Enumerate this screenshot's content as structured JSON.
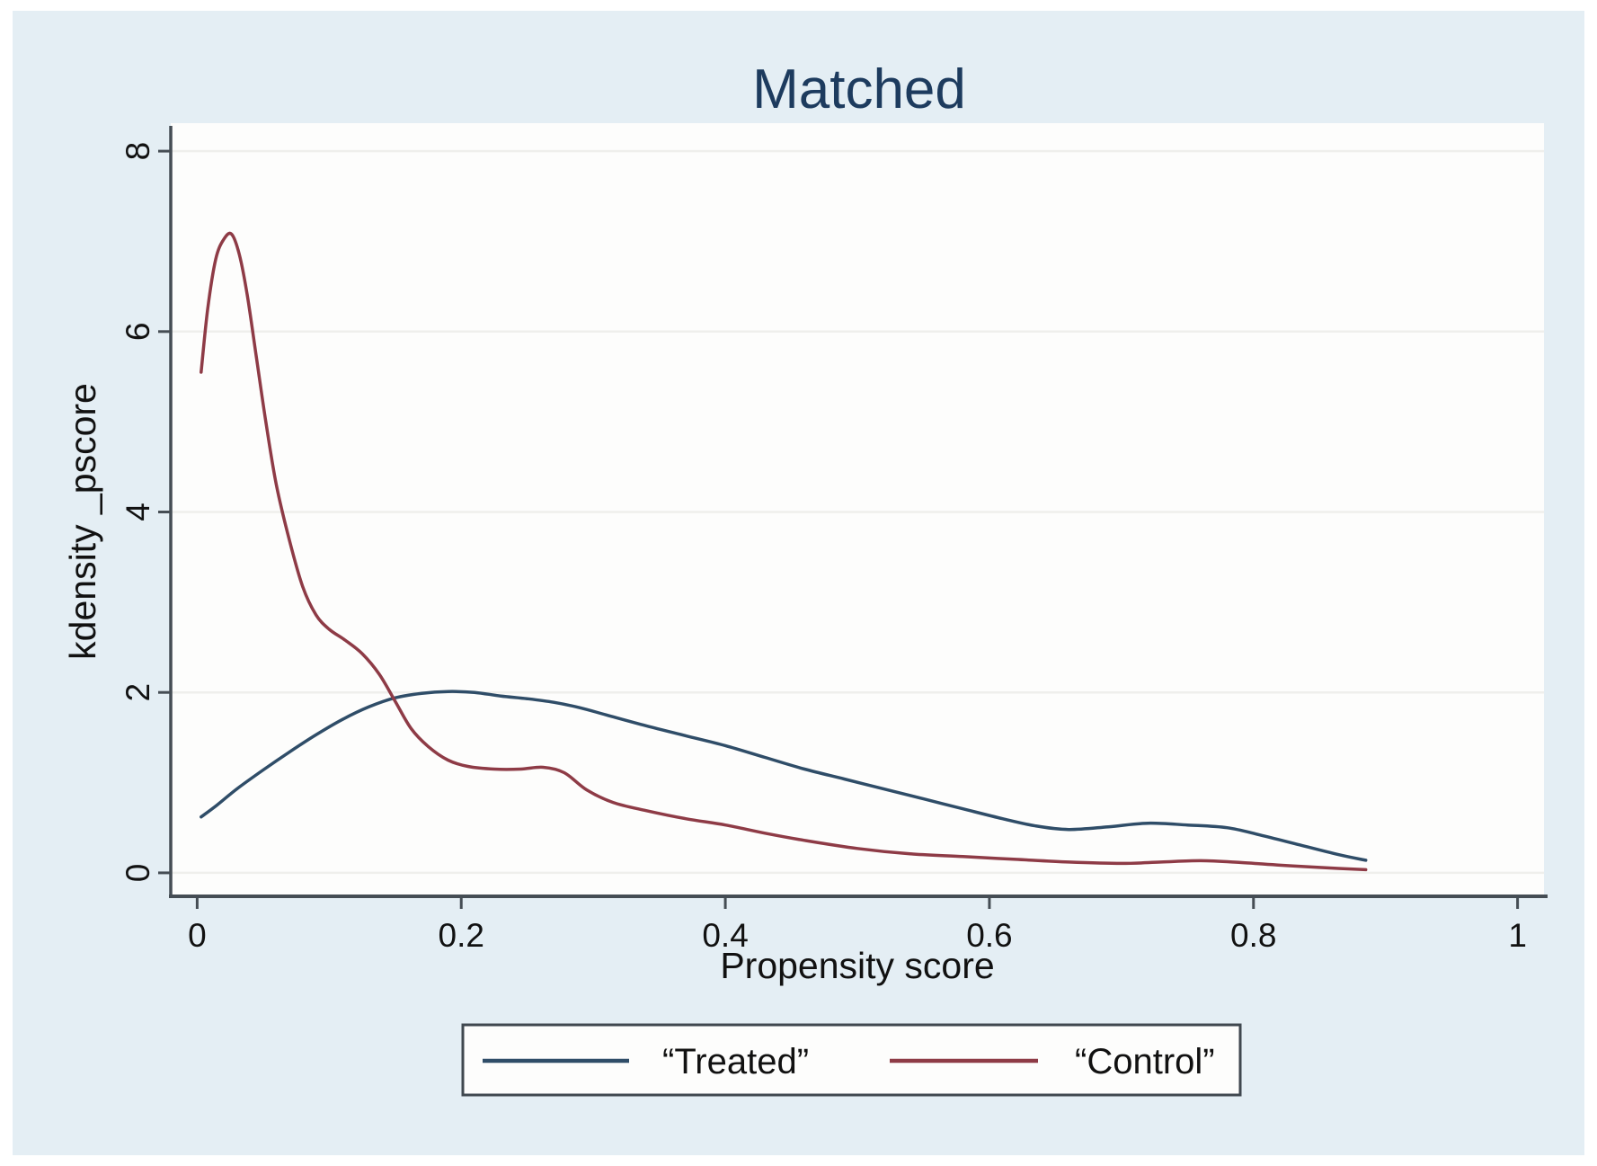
{
  "figure": {
    "page_background": "#ffffff",
    "canvas_background": "#e4eef4",
    "plot_background": "#fdfdfc"
  },
  "chart_data": {
    "type": "line",
    "title": "Matched",
    "xlabel": "Propensity score",
    "ylabel": "kdensity _pscore",
    "xlim": [
      -0.02,
      1.02
    ],
    "ylim": [
      -0.26,
      8.31
    ],
    "grid": "horizontal-only",
    "legend_position": "bottom-center",
    "x_ticks": {
      "values": [
        0,
        0.2,
        0.4,
        0.6,
        0.8,
        1
      ],
      "labels": [
        "0",
        "0.2",
        "0.4",
        "0.6",
        "0.8",
        "1"
      ]
    },
    "y_ticks": {
      "values": [
        0,
        2,
        4,
        6,
        8
      ],
      "labels": [
        "0",
        "2",
        "4",
        "6",
        "8"
      ]
    },
    "style": {
      "title_color": "#1d3b5e",
      "axis_color": "#454d54",
      "grid_color": "#efefec",
      "text_color": "#111111",
      "legend_border_color": "#40484f",
      "legend_background": "#fdfdfc"
    },
    "series": [
      {
        "name": "“Treated”",
        "color": "#2f4d68",
        "points": [
          [
            0.003,
            0.62
          ],
          [
            0.015,
            0.75
          ],
          [
            0.03,
            0.93
          ],
          [
            0.05,
            1.14
          ],
          [
            0.07,
            1.34
          ],
          [
            0.09,
            1.53
          ],
          [
            0.11,
            1.7
          ],
          [
            0.13,
            1.84
          ],
          [
            0.15,
            1.94
          ],
          [
            0.17,
            1.99
          ],
          [
            0.19,
            2.01
          ],
          [
            0.21,
            2.0
          ],
          [
            0.23,
            1.96
          ],
          [
            0.25,
            1.93
          ],
          [
            0.27,
            1.89
          ],
          [
            0.29,
            1.83
          ],
          [
            0.31,
            1.75
          ],
          [
            0.34,
            1.63
          ],
          [
            0.37,
            1.52
          ],
          [
            0.4,
            1.41
          ],
          [
            0.43,
            1.28
          ],
          [
            0.46,
            1.15
          ],
          [
            0.49,
            1.04
          ],
          [
            0.52,
            0.93
          ],
          [
            0.55,
            0.82
          ],
          [
            0.58,
            0.71
          ],
          [
            0.61,
            0.6
          ],
          [
            0.635,
            0.52
          ],
          [
            0.66,
            0.48
          ],
          [
            0.69,
            0.51
          ],
          [
            0.72,
            0.55
          ],
          [
            0.75,
            0.53
          ],
          [
            0.78,
            0.5
          ],
          [
            0.805,
            0.42
          ],
          [
            0.835,
            0.31
          ],
          [
            0.865,
            0.2
          ],
          [
            0.885,
            0.14
          ]
        ]
      },
      {
        "name": "“Control”",
        "color": "#8e3b46",
        "points": [
          [
            0.003,
            5.55
          ],
          [
            0.008,
            6.25
          ],
          [
            0.014,
            6.8
          ],
          [
            0.02,
            7.02
          ],
          [
            0.026,
            7.08
          ],
          [
            0.032,
            6.85
          ],
          [
            0.038,
            6.4
          ],
          [
            0.045,
            5.7
          ],
          [
            0.052,
            5.0
          ],
          [
            0.06,
            4.3
          ],
          [
            0.07,
            3.68
          ],
          [
            0.08,
            3.17
          ],
          [
            0.09,
            2.86
          ],
          [
            0.1,
            2.7
          ],
          [
            0.112,
            2.58
          ],
          [
            0.125,
            2.43
          ],
          [
            0.138,
            2.2
          ],
          [
            0.15,
            1.9
          ],
          [
            0.162,
            1.6
          ],
          [
            0.175,
            1.4
          ],
          [
            0.19,
            1.25
          ],
          [
            0.205,
            1.18
          ],
          [
            0.225,
            1.15
          ],
          [
            0.245,
            1.15
          ],
          [
            0.262,
            1.17
          ],
          [
            0.278,
            1.11
          ],
          [
            0.295,
            0.92
          ],
          [
            0.315,
            0.78
          ],
          [
            0.34,
            0.69
          ],
          [
            0.37,
            0.6
          ],
          [
            0.4,
            0.53
          ],
          [
            0.43,
            0.44
          ],
          [
            0.46,
            0.36
          ],
          [
            0.5,
            0.27
          ],
          [
            0.54,
            0.21
          ],
          [
            0.58,
            0.18
          ],
          [
            0.62,
            0.15
          ],
          [
            0.66,
            0.12
          ],
          [
            0.7,
            0.105
          ],
          [
            0.73,
            0.12
          ],
          [
            0.76,
            0.135
          ],
          [
            0.79,
            0.115
          ],
          [
            0.82,
            0.085
          ],
          [
            0.85,
            0.06
          ],
          [
            0.885,
            0.035
          ]
        ]
      }
    ]
  }
}
